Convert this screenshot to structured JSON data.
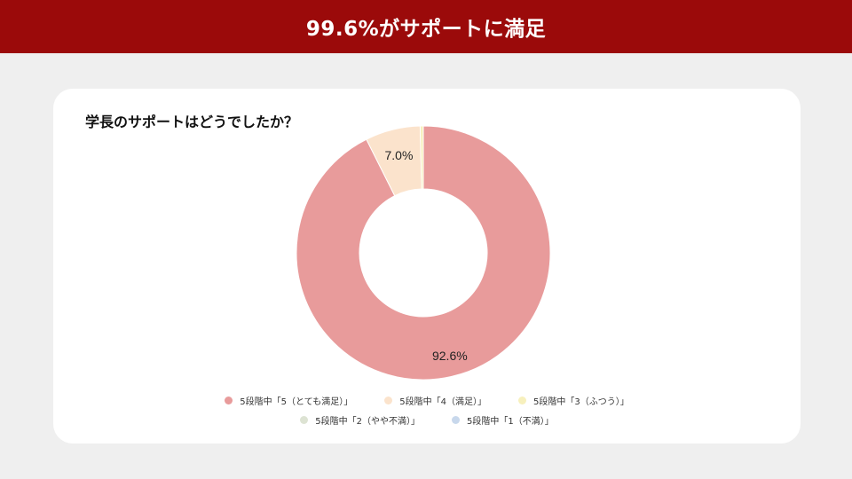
{
  "banner": {
    "title": "99.6%がサポートに満足"
  },
  "chart_data": {
    "type": "pie",
    "title": "学長のサポートはどうでしたか？",
    "categories": [
      "5段階中「5（とても満足）」",
      "5段階中「4（満足）」",
      "5段階中「3（ふつう）」",
      "5段階中「2（やや不満）」",
      "5段階中「1（不満）」"
    ],
    "values": [
      92.6,
      7.0,
      0.4,
      0.0,
      0.0
    ],
    "data_labels": [
      "92.6%",
      "7.0%",
      "",
      "",
      ""
    ],
    "colors": [
      "#e89b9b",
      "#fbe3cc",
      "#f7f0bd",
      "#dde3d3",
      "#c8d8ec"
    ],
    "legend_placement": "bottom"
  }
}
